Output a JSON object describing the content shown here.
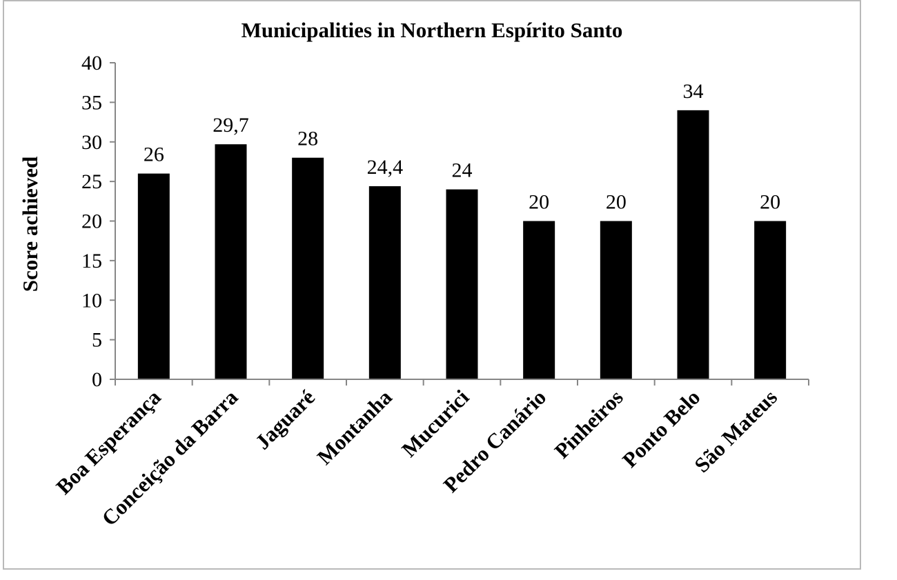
{
  "chart_data": {
    "type": "bar",
    "title": "Municipalities in Northern Espírito Santo",
    "xlabel": "",
    "ylabel": "Score achieved",
    "categories": [
      "Boa Esperança",
      "Conceição da Barra",
      "Jaguaré",
      "Montanha",
      "Mucurici",
      "Pedro Canário",
      "Pinheiros",
      "Ponto Belo",
      "São Mateus"
    ],
    "values": [
      26,
      29.7,
      28,
      24.4,
      24,
      20,
      20,
      34,
      20
    ],
    "data_labels": [
      "26",
      "29,7",
      "28",
      "24,4",
      "24",
      "20",
      "20",
      "34",
      "20"
    ],
    "yticks": [
      "0",
      "5",
      "10",
      "15",
      "20",
      "25",
      "30",
      "35",
      "40"
    ],
    "ylim": [
      0,
      40
    ],
    "grid": false,
    "legend": "none",
    "bar_color": "#000000",
    "axis_color": "#868686",
    "frame_color": "#b9b9b9"
  }
}
